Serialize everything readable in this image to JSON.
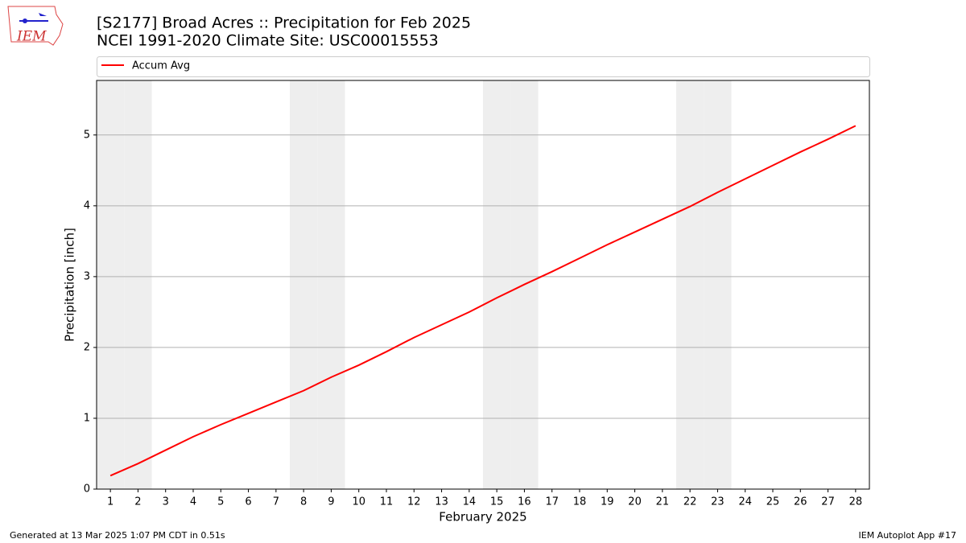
{
  "chart_data": {
    "type": "line",
    "title": "[S2177] Broad Acres :: Precipitation for Feb 2025",
    "subtitle": "NCEI 1991-2020 Climate Site: USC00015553",
    "x_label": "February 2025",
    "y_label": "Precipitation [inch]",
    "x": [
      1,
      2,
      3,
      4,
      5,
      6,
      7,
      8,
      9,
      10,
      11,
      12,
      13,
      14,
      15,
      16,
      17,
      18,
      19,
      20,
      21,
      22,
      23,
      24,
      25,
      26,
      27,
      28
    ],
    "series": [
      {
        "name": "Accum Avg",
        "color": "#ff0000",
        "values": [
          0.19,
          0.36,
          0.55,
          0.74,
          0.91,
          1.07,
          1.23,
          1.39,
          1.58,
          1.75,
          1.94,
          2.14,
          2.32,
          2.5,
          2.7,
          2.89,
          3.07,
          3.26,
          3.45,
          3.63,
          3.81,
          3.99,
          4.19,
          4.38,
          4.57,
          4.76,
          4.94,
          5.13
        ]
      }
    ],
    "xlim": [
      0.5,
      28.5
    ],
    "ylim": [
      0,
      5.77
    ],
    "xticks": [
      1,
      2,
      3,
      4,
      5,
      6,
      7,
      8,
      9,
      10,
      11,
      12,
      13,
      14,
      15,
      16,
      17,
      18,
      19,
      20,
      21,
      22,
      23,
      24,
      25,
      26,
      27,
      28
    ],
    "yticks": [
      0,
      1,
      2,
      3,
      4,
      5
    ],
    "grid": true,
    "shaded_days": [
      1,
      2,
      8,
      9,
      15,
      16,
      22,
      23
    ],
    "shade_color": "#eeeeee",
    "legend": "top",
    "logo_text": "IEM",
    "footer_left": "Generated at 13 Mar 2025 1:07 PM CDT in 0.51s",
    "footer_right": "IEM Autoplot App #17"
  }
}
